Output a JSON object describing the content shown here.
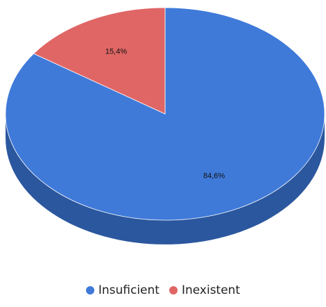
{
  "chart_data": {
    "type": "pie",
    "style": "3d",
    "categories": [
      "Insuficient",
      "Inexistent"
    ],
    "values": [
      84.6,
      15.4
    ],
    "value_labels": [
      "84,6%",
      "15,4%"
    ],
    "colors": [
      "#3f7ad9",
      "#e06666"
    ],
    "side_colors": [
      "#2b579e",
      "#a54a4a"
    ],
    "start": "top",
    "direction": "clockwise",
    "legend_position": "bottom"
  }
}
